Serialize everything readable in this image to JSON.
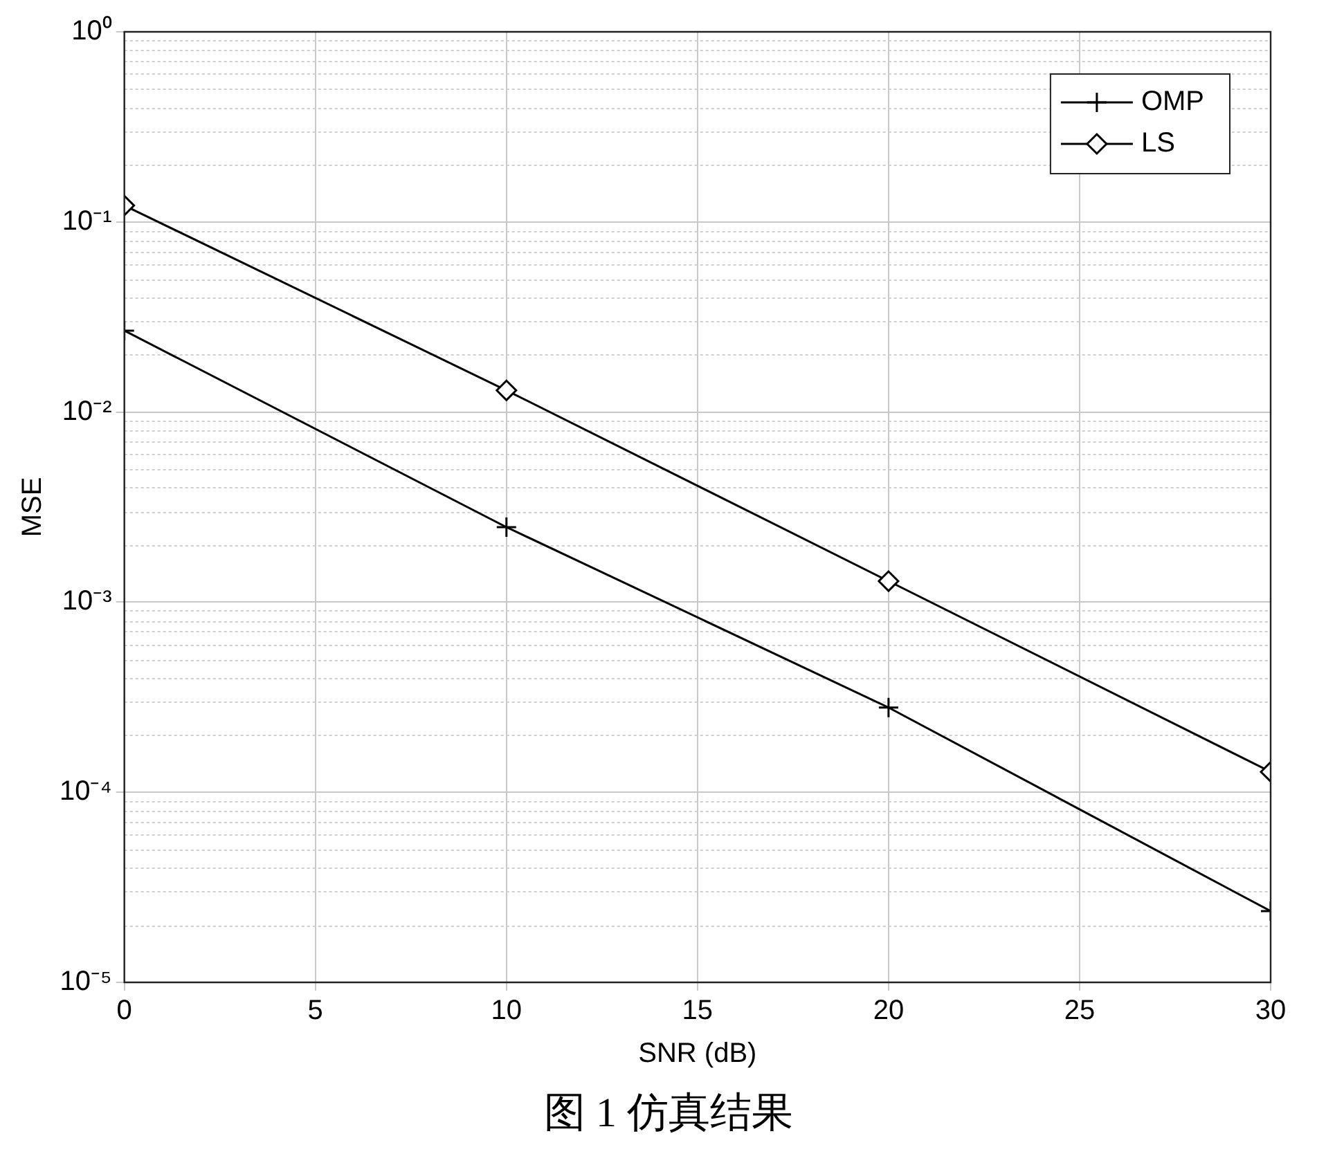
{
  "chart_data": {
    "type": "line",
    "xlabel": "SNR (dB)",
    "ylabel": "MSE",
    "x": [
      0,
      10,
      20,
      30
    ],
    "series": [
      {
        "name": "OMP",
        "color": "#000000",
        "marker": "cross",
        "values": [
          0.0268,
          0.00248,
          0.000279,
          2.37e-05
        ]
      },
      {
        "name": "LS",
        "color": "#000000",
        "marker": "diamond",
        "values": [
          0.122,
          0.013,
          0.00129,
          0.000128
        ]
      }
    ],
    "xlim": [
      0,
      30
    ],
    "xticks": [
      0,
      5,
      10,
      15,
      20,
      25,
      30
    ],
    "ylim": [
      1e-05,
      1
    ],
    "yticks": [
      {
        "value": 1e-05,
        "label": "10⁻⁵"
      },
      {
        "value": 0.0001,
        "label": "10⁻⁴"
      },
      {
        "value": 0.001,
        "label": "10⁻³"
      },
      {
        "value": 0.01,
        "label": "10⁻²"
      },
      {
        "value": 0.1,
        "label": "10⁻¹"
      },
      {
        "value": 1,
        "label": "10⁰"
      }
    ],
    "log": "y",
    "grid": true,
    "legend": "top right",
    "line_style": "solid",
    "annotations": [
      "图 1 仿真结果"
    ]
  }
}
